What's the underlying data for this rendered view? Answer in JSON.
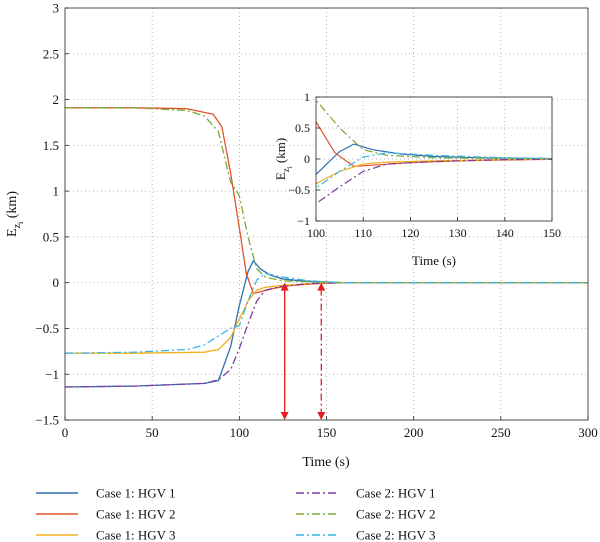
{
  "chart_data": [
    {
      "type": "line",
      "name": "main",
      "xlabel": "Time (s)",
      "ylabel_main": "E",
      "ylabel_sub": "z",
      "ylabel_subsub": "i",
      "ylabel_unit": " (km)",
      "xlim": [
        0,
        300
      ],
      "ylim": [
        -1.5,
        3
      ],
      "x_ticks": [
        0,
        50,
        100,
        150,
        200,
        250,
        300
      ],
      "y_ticks": [
        -1.5,
        -1,
        -0.5,
        0,
        0.5,
        1,
        1.5,
        2,
        2.5,
        3
      ],
      "x_tick_labels": [
        "0",
        "50",
        "100",
        "150",
        "200",
        "250",
        "300"
      ],
      "y_tick_labels": [
        "−1.5",
        "−1",
        "−0.5",
        "0",
        "0.5",
        "1",
        "1.5",
        "2",
        "2.5",
        "3"
      ],
      "grid": true,
      "legend_position": "below plot",
      "series": [
        {
          "name": "Case 1: HGV 1",
          "color": "#2e6fb4",
          "dash": "solid",
          "x": [
            0,
            40,
            80,
            88,
            95,
            100,
            105,
            108,
            112,
            118,
            125,
            135,
            145,
            160,
            200,
            300
          ],
          "y": [
            -1.14,
            -1.13,
            -1.1,
            -1.07,
            -0.7,
            -0.25,
            0.12,
            0.24,
            0.15,
            0.08,
            0.04,
            0.02,
            0.01,
            0.0,
            0.0,
            0.0
          ]
        },
        {
          "name": "Case 1: HGV 2",
          "color": "#e0522b",
          "dash": "solid",
          "x": [
            0,
            40,
            70,
            85,
            90,
            95,
            100,
            104,
            108,
            112,
            120,
            130,
            145,
            160,
            200,
            300
          ],
          "y": [
            1.91,
            1.91,
            1.9,
            1.84,
            1.7,
            1.2,
            0.6,
            0.1,
            -0.12,
            -0.1,
            -0.06,
            -0.03,
            -0.01,
            0.0,
            0.0,
            0.0
          ]
        },
        {
          "name": "Case 1: HGV 3",
          "color": "#f2b01e",
          "dash": "solid",
          "x": [
            0,
            40,
            80,
            88,
            95,
            100,
            105,
            110,
            115,
            125,
            140,
            160,
            200,
            300
          ],
          "y": [
            -0.77,
            -0.77,
            -0.76,
            -0.73,
            -0.6,
            -0.4,
            -0.2,
            -0.08,
            -0.05,
            -0.03,
            -0.01,
            0.0,
            0.0,
            0.0
          ]
        },
        {
          "name": "Case 2: HGV 1",
          "color": "#7b3f9e",
          "dash": "8,3,2,3",
          "x": [
            0,
            40,
            80,
            88,
            95,
            100,
            105,
            110,
            115,
            125,
            140,
            160,
            200,
            300
          ],
          "y": [
            -1.14,
            -1.13,
            -1.1,
            -1.06,
            -0.95,
            -0.72,
            -0.45,
            -0.2,
            -0.08,
            -0.04,
            -0.01,
            0.0,
            0.0,
            0.0
          ]
        },
        {
          "name": "Case 2: HGV 2",
          "color": "#7aa832",
          "dash": "8,3,2,3",
          "x": [
            0,
            40,
            70,
            80,
            88,
            95,
            100,
            105,
            110,
            115,
            125,
            140,
            160,
            200,
            300
          ],
          "y": [
            1.91,
            1.91,
            1.88,
            1.82,
            1.65,
            1.1,
            0.95,
            0.5,
            0.15,
            0.06,
            0.02,
            0.01,
            0.0,
            0.0,
            0.0
          ]
        },
        {
          "name": "Case 2: HGV 3",
          "color": "#3ab6e6",
          "dash": "8,3,2,3",
          "x": [
            0,
            40,
            70,
            80,
            88,
            95,
            100,
            105,
            110,
            115,
            125,
            140,
            160,
            200,
            300
          ],
          "y": [
            -0.77,
            -0.76,
            -0.73,
            -0.68,
            -0.58,
            -0.5,
            -0.47,
            -0.2,
            0.03,
            0.1,
            0.06,
            0.02,
            0.0,
            0.0,
            0.0
          ]
        }
      ],
      "annotations": [
        {
          "type": "arrow",
          "style": "solid",
          "color": "#e32020",
          "x": 126,
          "y_from": 0,
          "y_to": -1.5
        },
        {
          "type": "arrow",
          "style": "dashdot",
          "color": "#e32020",
          "x": 147,
          "y_from": 0,
          "y_to": -1.5
        }
      ]
    },
    {
      "type": "line",
      "name": "inset",
      "xlabel": "Time (s)",
      "ylabel_main": "E",
      "ylabel_sub": "z",
      "ylabel_subsub": "i",
      "ylabel_unit": " (km)",
      "xlim": [
        100,
        150
      ],
      "ylim": [
        -1,
        1
      ],
      "x_ticks": [
        100,
        110,
        120,
        130,
        140,
        150
      ],
      "y_ticks": [
        -1,
        -0.5,
        0,
        0.5,
        1
      ],
      "x_tick_labels": [
        "100",
        "110",
        "120",
        "130",
        "140",
        "150"
      ],
      "y_tick_labels": [
        "−1",
        "−0.5",
        "0",
        "0.5",
        "1"
      ],
      "grid": true,
      "series_ref": "main"
    }
  ]
}
